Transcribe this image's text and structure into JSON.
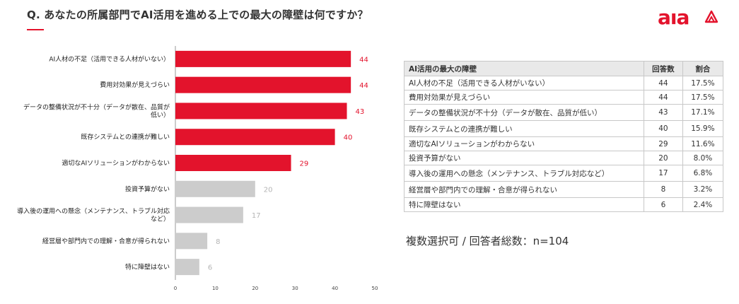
{
  "header": {
    "title": "Q. あなたの所属部門でAI活用を進める上での最大の障壁は何ですか？",
    "brand": "aıa"
  },
  "colors": {
    "accent": "#e3132c",
    "muted": "#cccccc",
    "muted_text": "#b5b5b5"
  },
  "chart_data": {
    "type": "bar",
    "orientation": "horizontal",
    "categories": [
      "AI人材の不足（活用できる人材がいない）",
      "費用対効果が見えづらい",
      "データの整備状況が不十分（データが散在、品質が低い）",
      "既存システムとの連携が難しい",
      "適切なAIソリューションがわからない",
      "投資予算がない",
      "導入後の運用への懸念（メンテナンス、トラブル対応など）",
      "経営層や部門内での理解・合意が得られない",
      "特に障壁はない"
    ],
    "category_lines": [
      [
        "AI人材の不足（活用できる人材がいない）"
      ],
      [
        "費用対効果が見えづらい"
      ],
      [
        "データの整備状況が不十分（データが散在、品質が",
        "低い）"
      ],
      [
        "既存システムとの連携が難しい"
      ],
      [
        "適切なAIソリューションがわからない"
      ],
      [
        "投資予算がない"
      ],
      [
        "導入後の運用への懸念（メンテナンス、トラブル対応",
        "など）"
      ],
      [
        "経営層や部門内での理解・合意が得られない"
      ],
      [
        "特に障壁はない"
      ]
    ],
    "values": [
      44,
      44,
      43,
      40,
      29,
      20,
      17,
      8,
      6
    ],
    "highlight_count": 5,
    "xlim": [
      0,
      50
    ],
    "xticks": [
      0,
      10,
      20,
      30,
      40,
      50
    ]
  },
  "table": {
    "headers": [
      "AI活用の最大の障壁",
      "回答数",
      "割合"
    ],
    "rows": [
      [
        "AI人材の不足（活用できる人材がいない）",
        "44",
        "17.5%"
      ],
      [
        "費用対効果が見えづらい",
        "44",
        "17.5%"
      ],
      [
        "データの整備状況が不十分（データが散在、品質が低い）",
        "43",
        "17.1%"
      ],
      [
        "既存システムとの連携が難しい",
        "40",
        "15.9%"
      ],
      [
        "適切なAIソリューションがわからない",
        "29",
        "11.6%"
      ],
      [
        "投資予算がない",
        "20",
        "8.0%"
      ],
      [
        "導入後の運用への懸念（メンテナンス、トラブル対応など）",
        "17",
        "6.8%"
      ],
      [
        "経営層や部門内での理解・合意が得られない",
        "8",
        "3.2%"
      ],
      [
        "特に障壁はない",
        "6",
        "2.4%"
      ]
    ]
  },
  "note": "複数選択可 / 回答者総数：n=104"
}
